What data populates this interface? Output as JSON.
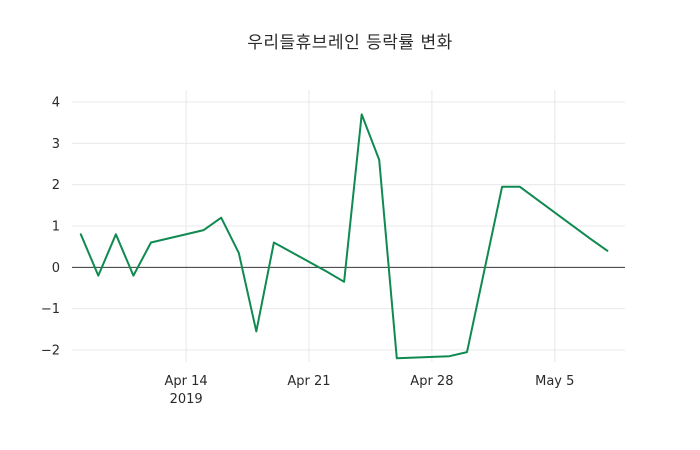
{
  "title": "우리들휴브레인 등락률 변화",
  "colors": {
    "line": "#0f8a50",
    "grid": "#e8e8e8",
    "zero_line": "#3a3a3a",
    "text": "#2a2a2a",
    "background": "#ffffff"
  },
  "chart_data": {
    "type": "line",
    "title": "우리들휴브레인 등락률 변화",
    "xlabel": "",
    "ylabel": "",
    "legend": "none",
    "grid": true,
    "zero_line": true,
    "xlim": [
      -0.5,
      31
    ],
    "ylim": [
      -2.29,
      4.29
    ],
    "y_ticks": [
      -2,
      -1,
      0,
      1,
      2,
      3,
      4
    ],
    "x_ticks": [
      {
        "x": 6,
        "label": "Apr 14",
        "sublabel": "2019"
      },
      {
        "x": 13,
        "label": "Apr 21",
        "sublabel": ""
      },
      {
        "x": 20,
        "label": "Apr 28",
        "sublabel": ""
      },
      {
        "x": 27,
        "label": "May 5",
        "sublabel": ""
      }
    ],
    "series": [
      {
        "name": "등락률",
        "color": "#0f8a50",
        "points": [
          {
            "date": "Apr 8",
            "x": 0,
            "y": 0.8
          },
          {
            "date": "Apr 9",
            "x": 1,
            "y": -0.2
          },
          {
            "date": "Apr 10",
            "x": 2,
            "y": 0.8
          },
          {
            "date": "Apr 11",
            "x": 3,
            "y": -0.2
          },
          {
            "date": "Apr 12",
            "x": 4,
            "y": 0.6
          },
          {
            "date": "Apr 15",
            "x": 7,
            "y": 0.9
          },
          {
            "date": "Apr 16",
            "x": 8,
            "y": 1.2
          },
          {
            "date": "Apr 17",
            "x": 9,
            "y": 0.35
          },
          {
            "date": "Apr 18",
            "x": 10,
            "y": -1.55
          },
          {
            "date": "Apr 19",
            "x": 11,
            "y": 0.6
          },
          {
            "date": "Apr 22",
            "x": 14,
            "y": -0.1
          },
          {
            "date": "Apr 23",
            "x": 15,
            "y": -0.35
          },
          {
            "date": "Apr 24",
            "x": 16,
            "y": 3.7
          },
          {
            "date": "Apr 25",
            "x": 17,
            "y": 2.6
          },
          {
            "date": "Apr 26",
            "x": 18,
            "y": -2.2
          },
          {
            "date": "Apr 29",
            "x": 21,
            "y": -2.15
          },
          {
            "date": "Apr 30",
            "x": 22,
            "y": -2.05
          },
          {
            "date": "May 2",
            "x": 24,
            "y": 1.95
          },
          {
            "date": "May 3",
            "x": 25,
            "y": 1.95
          },
          {
            "date": "May 7",
            "x": 29,
            "y": 0.7
          },
          {
            "date": "May 8",
            "x": 30,
            "y": 0.4
          }
        ]
      }
    ]
  }
}
